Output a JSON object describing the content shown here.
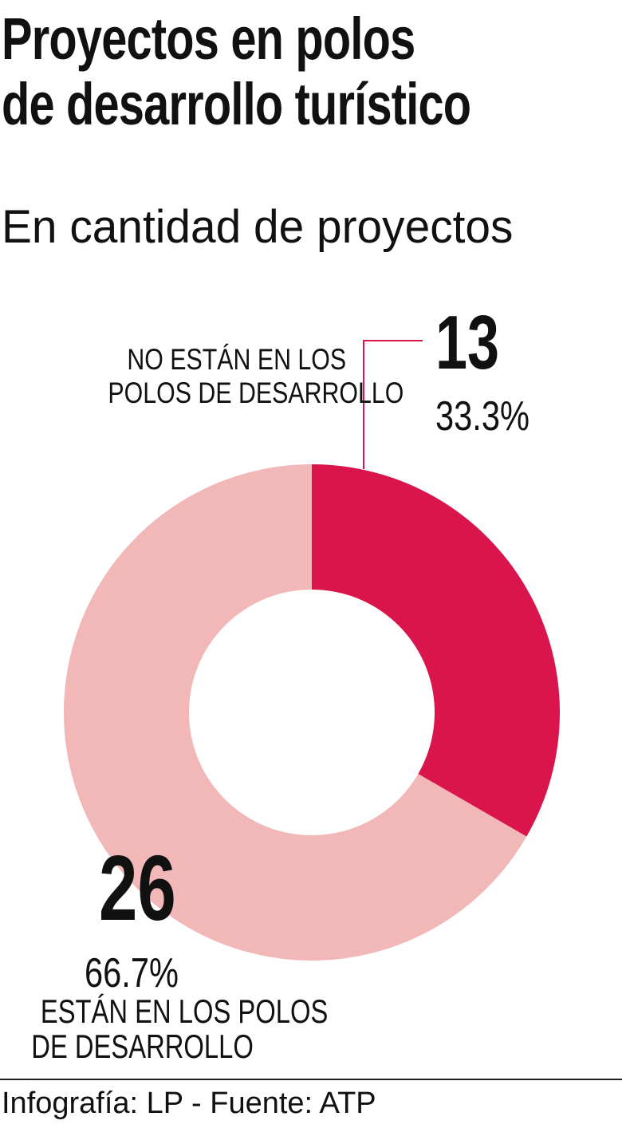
{
  "title_lines": [
    "Proyectos en polos",
    "de desarrollo turístico"
  ],
  "subtitle": "En cantidad de proyectos",
  "credit": "Infografía: LP - Fuente: ATP",
  "chart_data": {
    "type": "pie",
    "variant": "donut",
    "title": "Proyectos en polos de desarrollo turístico",
    "subtitle": "En cantidad de proyectos",
    "slices": [
      {
        "label_lines": [
          "NO ESTÁN EN LOS",
          "POLOS DE DESARROLLO"
        ],
        "value": 13,
        "value_label": "13",
        "percent_label": "33.3%",
        "color": "#d9154c"
      },
      {
        "label_lines": [
          "ESTÁN EN LOS POLOS",
          "DE DESARROLLO"
        ],
        "value": 26,
        "value_label": "26",
        "percent_label": "66.7%",
        "color": "#f2b8b7"
      }
    ],
    "start_angle": "12 o'clock, clockwise",
    "legend": "none"
  }
}
